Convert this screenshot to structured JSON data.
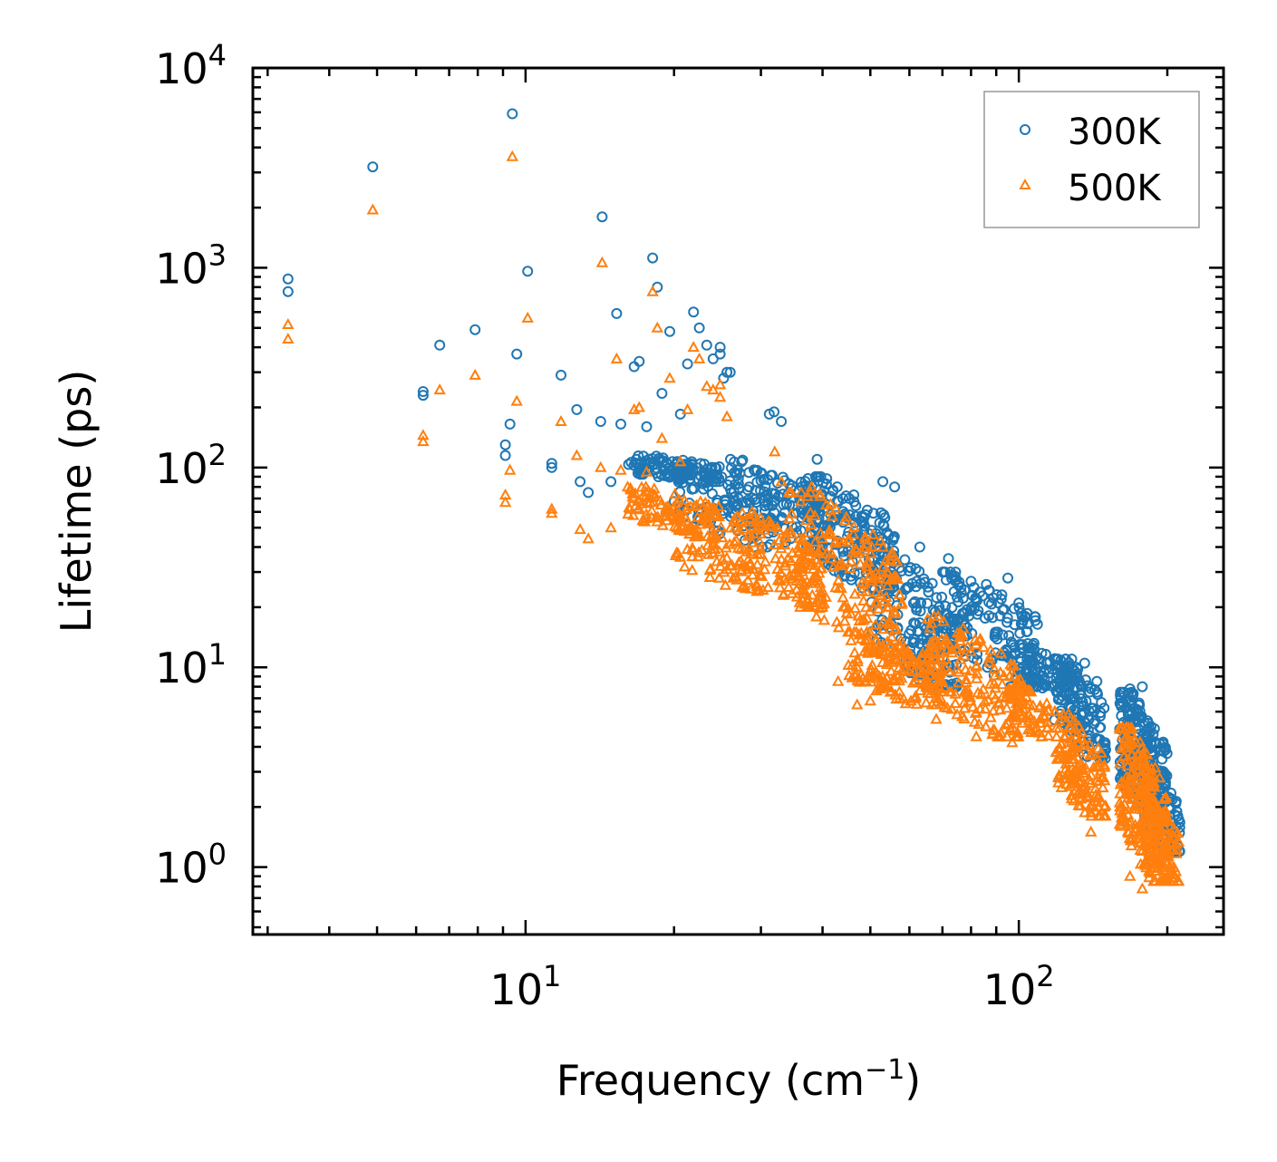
{
  "chart_data": {
    "type": "scatter",
    "xlabel": "Frequency (cm",
    "xlabel_sup": "−1",
    "xlabel_end": ")",
    "ylabel": "Lifetime (ps)",
    "xscale": "log",
    "yscale": "log",
    "xlim": [
      2.8,
      260
    ],
    "ylim": [
      0.46,
      10000
    ],
    "x_ticks": [
      {
        "value": 10,
        "base": "10",
        "exp": "1"
      },
      {
        "value": 100,
        "base": "10",
        "exp": "2"
      }
    ],
    "y_ticks": [
      {
        "value": 1,
        "base": "10",
        "exp": "0"
      },
      {
        "value": 10,
        "base": "10",
        "exp": "1"
      },
      {
        "value": 100,
        "base": "10",
        "exp": "2"
      },
      {
        "value": 1000,
        "base": "10",
        "exp": "3"
      },
      {
        "value": 10000,
        "base": "10",
        "exp": "4"
      }
    ],
    "legend_position": "top-right",
    "series": [
      {
        "name": "300K",
        "color": "#1f77b4",
        "marker": "circle",
        "highlights": [
          [
            3.3,
            880
          ],
          [
            3.3,
            760
          ],
          [
            4.9,
            3200
          ],
          [
            6.2,
            240
          ],
          [
            6.2,
            230
          ],
          [
            6.7,
            410
          ],
          [
            7.9,
            490
          ],
          [
            9.1,
            130
          ],
          [
            9.1,
            115
          ],
          [
            9.3,
            165
          ],
          [
            9.6,
            370
          ],
          [
            9.4,
            5900
          ],
          [
            10.1,
            960
          ],
          [
            11.3,
            105
          ],
          [
            11.3,
            100
          ],
          [
            11.8,
            290
          ],
          [
            12.7,
            195
          ],
          [
            12.9,
            85
          ],
          [
            13.4,
            75
          ],
          [
            14.3,
            1800
          ],
          [
            14.2,
            170
          ],
          [
            14.9,
            85
          ],
          [
            15.3,
            590
          ],
          [
            15.6,
            165
          ],
          [
            16.6,
            320
          ],
          [
            17.0,
            340
          ],
          [
            17.6,
            160
          ],
          [
            18.1,
            1120
          ],
          [
            18.5,
            800
          ],
          [
            18.9,
            235
          ],
          [
            19.6,
            480
          ],
          [
            20.6,
            185
          ],
          [
            21.3,
            330
          ],
          [
            21.9,
            600
          ],
          [
            22.5,
            500
          ],
          [
            23.3,
            410
          ],
          [
            24.0,
            350
          ],
          [
            24.8,
            400
          ],
          [
            24.8,
            370
          ],
          [
            25.6,
            300
          ],
          [
            25.2,
            280
          ],
          [
            26.0,
            300
          ],
          [
            27.0,
            88
          ],
          [
            28.4,
            80
          ],
          [
            29.2,
            96
          ],
          [
            31.2,
            185
          ],
          [
            31.9,
            190
          ],
          [
            33.0,
            170
          ],
          [
            39.0,
            110
          ],
          [
            40.8,
            88
          ],
          [
            44.0,
            70
          ],
          [
            53.0,
            85
          ],
          [
            56.0,
            80
          ],
          [
            63.0,
            40
          ],
          [
            72.0,
            35
          ],
          [
            80.0,
            27
          ],
          [
            95.0,
            28
          ],
          [
            100.0,
            21
          ],
          [
            128.0,
            11
          ],
          [
            131.0,
            10
          ],
          [
            136.0,
            10.5
          ],
          [
            144.0,
            8.5
          ],
          [
            168.0,
            7.8
          ],
          [
            178.0,
            8.0
          ],
          [
            210.0,
            1.8
          ]
        ],
        "clusters": [
          {
            "x": [
              16,
              25
            ],
            "y": [
              85,
              115
            ],
            "n": 110
          },
          {
            "x": [
              20,
              32
            ],
            "y": [
              40,
              100
            ],
            "n": 90
          },
          {
            "x": [
              26,
              40
            ],
            "y": [
              40,
              110
            ],
            "n": 120
          },
          {
            "x": [
              36,
              56
            ],
            "y": [
              25,
              90
            ],
            "n": 200
          },
          {
            "x": [
              50,
              75
            ],
            "y": [
              8,
              40
            ],
            "n": 180
          },
          {
            "x": [
              70,
              110
            ],
            "y": [
              8,
              30
            ],
            "n": 160
          },
          {
            "x": [
              100,
              130
            ],
            "y": [
              7,
              13
            ],
            "n": 90
          },
          {
            "x": [
              118,
              150
            ],
            "y": [
              3.5,
              11
            ],
            "n": 130
          },
          {
            "x": [
              160,
              200
            ],
            "y": [
              1.6,
              7.5
            ],
            "n": 260
          },
          {
            "x": [
              180,
              212
            ],
            "y": [
              1.2,
              3
            ],
            "n": 90
          }
        ]
      },
      {
        "name": "500K",
        "color": "#ff7f0e",
        "marker": "triangle",
        "highlights": [
          [
            3.3,
            520
          ],
          [
            3.3,
            440
          ],
          [
            4.9,
            1950
          ],
          [
            6.2,
            145
          ],
          [
            6.2,
            135
          ],
          [
            6.7,
            245
          ],
          [
            7.9,
            290
          ],
          [
            9.1,
            73
          ],
          [
            9.1,
            67
          ],
          [
            9.3,
            97
          ],
          [
            9.6,
            215
          ],
          [
            9.4,
            3600
          ],
          [
            10.1,
            560
          ],
          [
            11.3,
            62
          ],
          [
            11.3,
            59
          ],
          [
            11.8,
            170
          ],
          [
            12.7,
            115
          ],
          [
            12.9,
            49
          ],
          [
            13.4,
            44
          ],
          [
            14.3,
            1060
          ],
          [
            14.2,
            100
          ],
          [
            14.9,
            50
          ],
          [
            15.3,
            350
          ],
          [
            15.6,
            97
          ],
          [
            16.6,
            195
          ],
          [
            17.0,
            200
          ],
          [
            17.6,
            95
          ],
          [
            18.1,
            760
          ],
          [
            18.5,
            500
          ],
          [
            18.9,
            140
          ],
          [
            19.6,
            280
          ],
          [
            20.6,
            107
          ],
          [
            21.3,
            195
          ],
          [
            21.9,
            400
          ],
          [
            22.5,
            350
          ],
          [
            23.3,
            255
          ],
          [
            24.0,
            245
          ],
          [
            24.8,
            260
          ],
          [
            24.8,
            225
          ],
          [
            25.6,
            180
          ],
          [
            32.0,
            120
          ],
          [
            33.0,
            85
          ],
          [
            38.0,
            80
          ],
          [
            43.0,
            8.5
          ],
          [
            47.0,
            6.5
          ],
          [
            50.0,
            6.8
          ],
          [
            68.0,
            5.5
          ],
          [
            75.0,
            5.8
          ],
          [
            82.0,
            4.5
          ],
          [
            97.0,
            4.2
          ],
          [
            128.0,
            2.2
          ],
          [
            140.0,
            1.5
          ],
          [
            150.0,
            1.8
          ],
          [
            168.0,
            0.9
          ],
          [
            178.0,
            0.78
          ],
          [
            205.0,
            0.95
          ]
        ],
        "clusters": [
          {
            "x": [
              16,
              25
            ],
            "y": [
              45,
              80
            ],
            "n": 110
          },
          {
            "x": [
              20,
              30
            ],
            "y": [
              24,
              50
            ],
            "n": 80
          },
          {
            "x": [
              26,
              40
            ],
            "y": [
              20,
              60
            ],
            "n": 120
          },
          {
            "x": [
              34,
              58
            ],
            "y": [
              12,
              75
            ],
            "n": 220
          },
          {
            "x": [
              45,
              70
            ],
            "y": [
              6.5,
              15
            ],
            "n": 150
          },
          {
            "x": [
              65,
              100
            ],
            "y": [
              4.5,
              18
            ],
            "n": 170
          },
          {
            "x": [
              95,
              115
            ],
            "y": [
              4.5,
              9
            ],
            "n": 70
          },
          {
            "x": [
              118,
              150
            ],
            "y": [
              1.8,
              6
            ],
            "n": 150
          },
          {
            "x": [
              160,
              200
            ],
            "y": [
              0.85,
              5
            ],
            "n": 260
          },
          {
            "x": [
              180,
              212
            ],
            "y": [
              0.85,
              2.3
            ],
            "n": 90
          }
        ]
      }
    ]
  }
}
